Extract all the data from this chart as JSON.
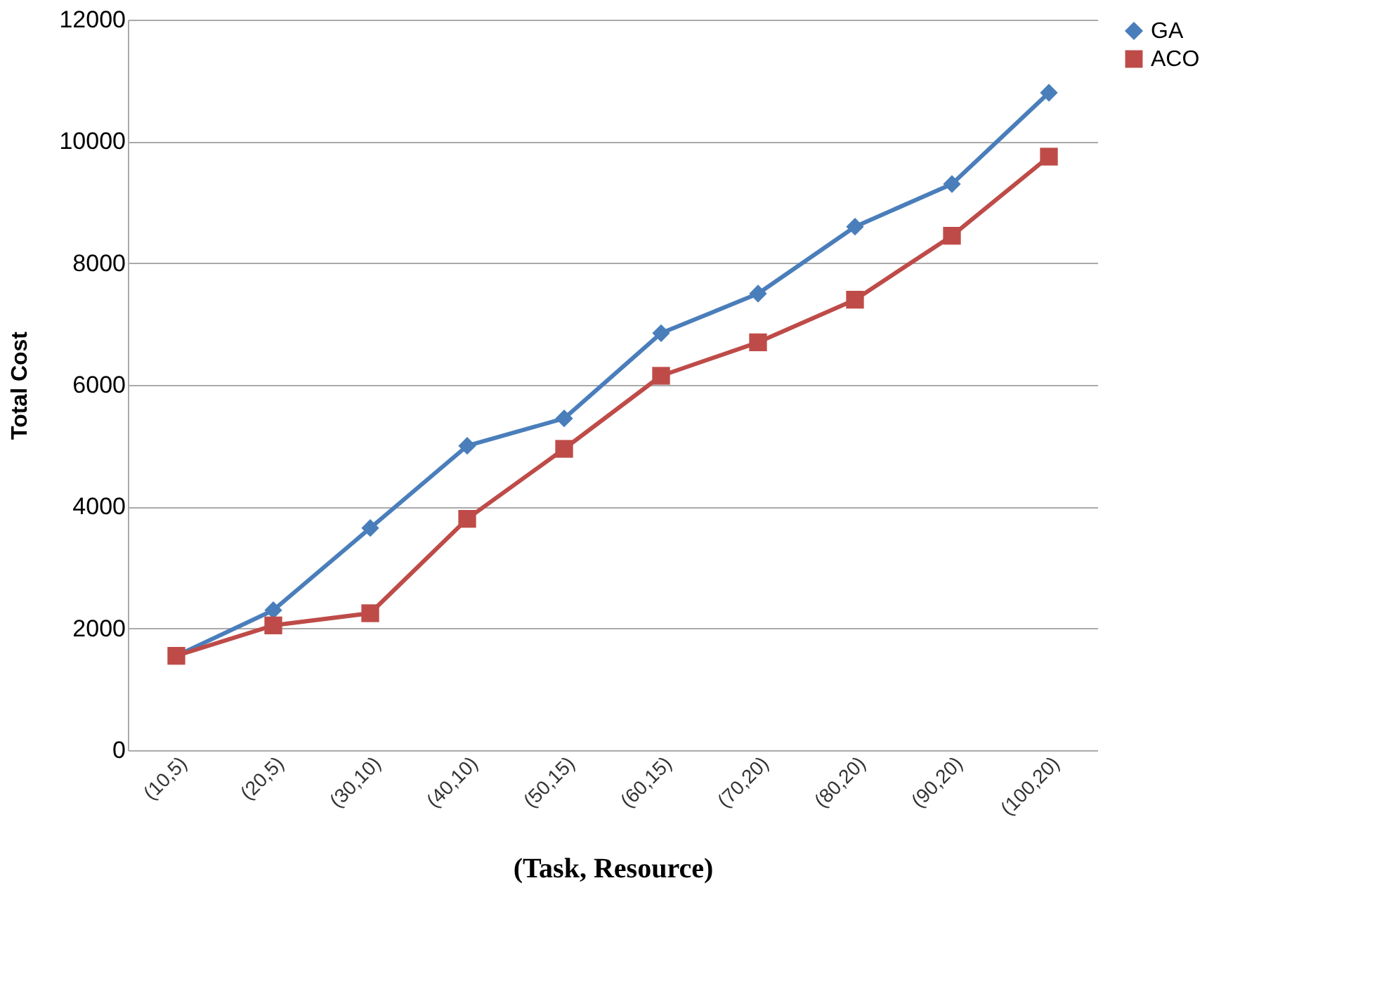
{
  "chart_data": {
    "type": "line",
    "xlabel": "(Task, Resource)",
    "ylabel": "Total Cost",
    "categories": [
      "(10,5)",
      "(20,5)",
      "(30,10)",
      "(40,10)",
      "(50,15)",
      "(60,15)",
      "(70,20)",
      "(80,20)",
      "(90,20)",
      "(100,20)"
    ],
    "series": [
      {
        "name": "GA",
        "color": "#4a7ebb",
        "marker": "diamond",
        "values": [
          1550,
          2300,
          3650,
          5000,
          5450,
          6850,
          7500,
          8600,
          9300,
          10800
        ]
      },
      {
        "name": "ACO",
        "color": "#be4b48",
        "marker": "square",
        "values": [
          1550,
          2050,
          2250,
          3800,
          4950,
          6150,
          6700,
          7400,
          8450,
          9750
        ]
      }
    ],
    "ylim": [
      0,
      12000
    ],
    "yticks": [
      0,
      2000,
      4000,
      6000,
      8000,
      10000,
      12000
    ],
    "grid": "y",
    "legend": "right"
  }
}
